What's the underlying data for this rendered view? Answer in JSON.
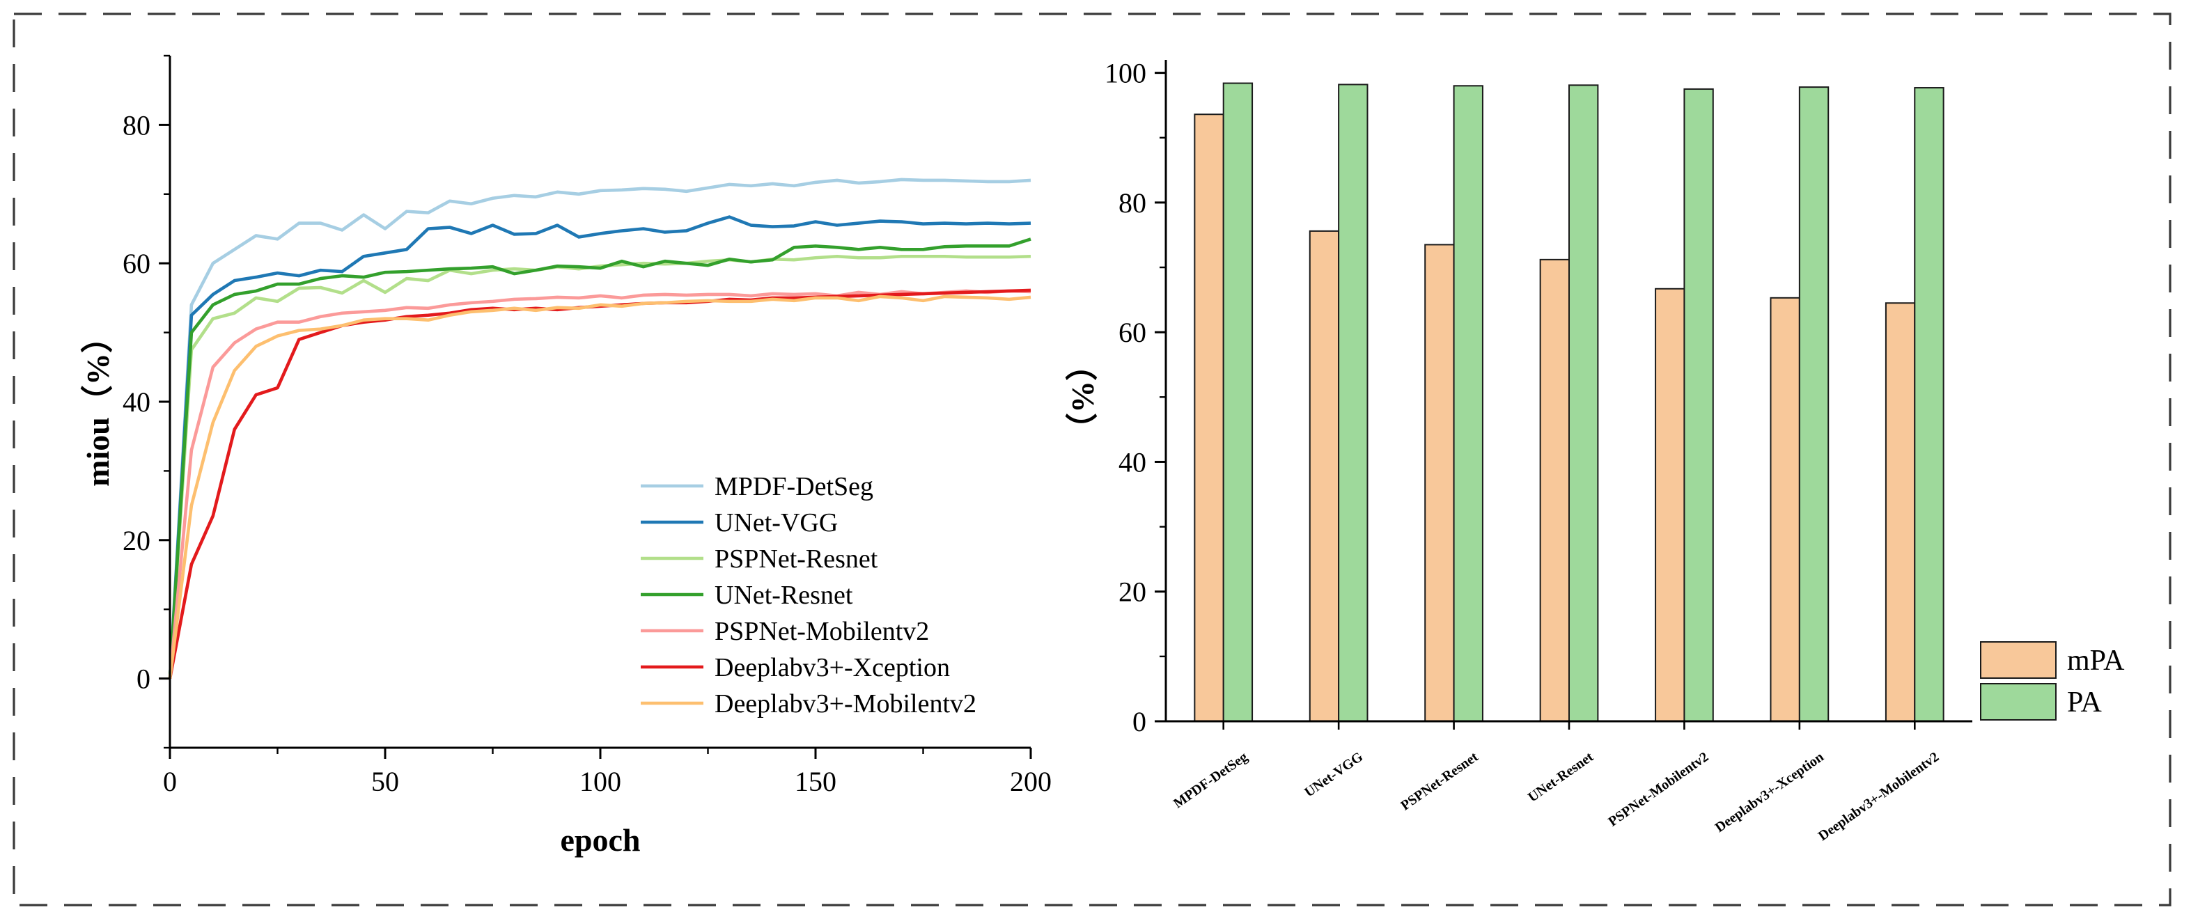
{
  "chart_data": [
    {
      "type": "line",
      "xlabel": "epoch",
      "ylabel": "miou（%）",
      "xlim": [
        0,
        200
      ],
      "ylim": [
        -10,
        90
      ],
      "x_ticks": [
        0,
        50,
        100,
        150,
        200
      ],
      "y_ticks": [
        0,
        20,
        40,
        60,
        80
      ],
      "grid": false,
      "legend_position": "bottom-right",
      "x": [
        0,
        5,
        10,
        15,
        20,
        25,
        30,
        35,
        40,
        45,
        50,
        55,
        60,
        65,
        70,
        75,
        80,
        85,
        90,
        95,
        100,
        105,
        110,
        115,
        120,
        125,
        130,
        135,
        140,
        145,
        150,
        155,
        160,
        165,
        170,
        175,
        180,
        185,
        190,
        195,
        200
      ],
      "series": [
        {
          "name": "MPDF-DetSeg",
          "color": "#a6cee3",
          "values": [
            0,
            54,
            60,
            62,
            64,
            63.5,
            65.8,
            65.8,
            64.8,
            67,
            65,
            67.5,
            67.3,
            69,
            68.6,
            69.4,
            69.8,
            69.6,
            70.3,
            70,
            70.5,
            70.6,
            70.8,
            70.7,
            70.4,
            70.9,
            71.4,
            71.2,
            71.5,
            71.2,
            71.7,
            72,
            71.6,
            71.8,
            72.1,
            72,
            72,
            71.9,
            71.8,
            71.8,
            72
          ]
        },
        {
          "name": "UNet-VGG",
          "color": "#1f78b4",
          "values": [
            0,
            52.5,
            55.5,
            57.5,
            58,
            58.6,
            58.2,
            59,
            58.8,
            61,
            61.5,
            62,
            65,
            65.2,
            64.3,
            65.5,
            64.2,
            64.3,
            65.5,
            63.8,
            64.3,
            64.7,
            65,
            64.5,
            64.7,
            65.8,
            66.7,
            65.5,
            65.3,
            65.4,
            66,
            65.5,
            65.8,
            66.1,
            66,
            65.7,
            65.8,
            65.7,
            65.8,
            65.7,
            65.8
          ]
        },
        {
          "name": "PSPNet-Resnet",
          "color": "#b2df8a",
          "values": [
            0,
            47.5,
            52,
            52.8,
            55,
            54.5,
            56.4,
            56.5,
            55.7,
            57.5,
            55.8,
            57.8,
            57.5,
            59,
            58.5,
            59,
            59.2,
            59,
            59.5,
            59.2,
            59.6,
            59.8,
            60,
            59.9,
            60,
            60.3,
            60.5,
            60.2,
            60.6,
            60.5,
            60.8,
            61,
            60.8,
            60.8,
            61,
            61,
            61,
            60.9,
            60.9,
            60.9,
            61
          ]
        },
        {
          "name": "UNet-Resnet",
          "color": "#33a02c",
          "values": [
            0,
            50,
            54,
            55.5,
            56,
            57,
            57,
            57.8,
            58.2,
            58,
            58.7,
            58.8,
            59,
            59.2,
            59.3,
            59.5,
            58.5,
            59,
            59.6,
            59.5,
            59.3,
            60.3,
            59.5,
            60.3,
            60,
            59.7,
            60.6,
            60.2,
            60.5,
            62.3,
            62.5,
            62.3,
            62,
            62.3,
            62,
            62,
            62.4,
            62.5,
            62.5,
            62.5,
            63.5
          ]
        },
        {
          "name": "PSPNet-Mobilentv2",
          "color": "#fb9a99",
          "values": [
            0,
            33,
            45,
            48.5,
            50.5,
            51.5,
            51.5,
            52.3,
            52.8,
            53,
            53.2,
            53.6,
            53.5,
            54,
            54.3,
            54.5,
            54.8,
            54.9,
            55.1,
            55,
            55.3,
            55,
            55.4,
            55.5,
            55.4,
            55.5,
            55.5,
            55.3,
            55.6,
            55.5,
            55.6,
            55.3,
            55.8,
            55.5,
            55.9,
            55.6,
            55.8,
            56,
            55.8,
            56,
            55.9
          ]
        },
        {
          "name": "Deeplabv3+-Xception",
          "color": "#e31a1c",
          "values": [
            0,
            16.5,
            23.5,
            36,
            41,
            42,
            49,
            50,
            51,
            51.5,
            51.8,
            52.3,
            52.5,
            52.8,
            53.3,
            53.5,
            53.3,
            53.5,
            53.3,
            53.6,
            53.8,
            54,
            54.2,
            54.3,
            54.3,
            54.5,
            54.8,
            54.7,
            55,
            55,
            55.1,
            55.2,
            55.3,
            55.4,
            55.5,
            55.6,
            55.7,
            55.8,
            55.9,
            56,
            56.1
          ]
        },
        {
          "name": "Deeplabv3+-Mobilentv2",
          "color": "#fdbf6f",
          "values": [
            0,
            25,
            37,
            44.5,
            48,
            49.5,
            50.3,
            50.5,
            51,
            51.8,
            52,
            52,
            51.8,
            52.5,
            53,
            53.2,
            53.5,
            53.2,
            53.6,
            53.5,
            54,
            53.8,
            54.2,
            54.3,
            54.5,
            54.6,
            54.5,
            54.5,
            54.8,
            54.6,
            55,
            55,
            54.6,
            55.2,
            55,
            54.6,
            55.2,
            55.1,
            55,
            54.8,
            55.1
          ]
        }
      ]
    },
    {
      "type": "bar",
      "ylabel": "（%）",
      "ylim": [
        0,
        102
      ],
      "y_ticks": [
        0,
        20,
        40,
        60,
        80,
        100
      ],
      "grid": false,
      "legend_position": "right",
      "categories": [
        "MPDF-DetSeg",
        "UNet-VGG",
        "PSPNet-Resnet",
        "UNet-Resnet",
        "PSPNet-Mobilentv2",
        "Deeplabv3+-Xception",
        "Deeplabv3+-Mobilentv2"
      ],
      "series": [
        {
          "name": "mPA",
          "color": "#f8c89a",
          "values": [
            93.6,
            75.6,
            73.5,
            71.2,
            66.7,
            65.3,
            64.5
          ]
        },
        {
          "name": "PA",
          "color": "#9ed99b",
          "values": [
            98.4,
            98.2,
            98.0,
            98.1,
            97.5,
            97.8,
            97.7
          ]
        }
      ]
    }
  ]
}
